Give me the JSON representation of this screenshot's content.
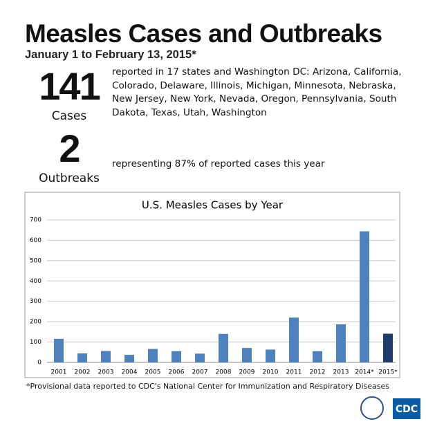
{
  "header": {
    "title": "Measles Cases and Outbreaks",
    "subtitle": "January 1 to February 13, 2015*"
  },
  "stats": [
    {
      "number": "141",
      "label": "Cases",
      "text": "reported in 17 states and Washington DC: Arizona, California, Colorado, Delaware, Illinois, Michigan, Minnesota, Nebraska, New Jersey, New York, Nevada, Oregon, Pennsylvania, South Dakota, Texas, Utah, Washington"
    },
    {
      "number": "2",
      "label": "Outbreaks",
      "text": "representing 87% of reported cases this year"
    }
  ],
  "chart_data": {
    "type": "bar",
    "title": "U.S. Measles Cases by Year",
    "categories": [
      "2001",
      "2002",
      "2003",
      "2004",
      "2005",
      "2006",
      "2007",
      "2008",
      "2009",
      "2010",
      "2011",
      "2012",
      "2013",
      "2014*",
      "2015*"
    ],
    "values": [
      116,
      44,
      56,
      37,
      66,
      55,
      43,
      140,
      71,
      63,
      220,
      55,
      187,
      644,
      141
    ],
    "colors": [
      "#4f81bd",
      "#4f81bd",
      "#4f81bd",
      "#4f81bd",
      "#4f81bd",
      "#4f81bd",
      "#4f81bd",
      "#4f81bd",
      "#4f81bd",
      "#4f81bd",
      "#4f81bd",
      "#4f81bd",
      "#4f81bd",
      "#4f81bd",
      "#1f3c6b"
    ],
    "ylim": [
      0,
      700
    ],
    "yticks": [
      0,
      100,
      200,
      300,
      400,
      500,
      600,
      700
    ],
    "grid": true
  },
  "footnote": "*Provisional data reported to CDC's National Center for Immunization and Respiratory Diseases",
  "logo": "CDC"
}
